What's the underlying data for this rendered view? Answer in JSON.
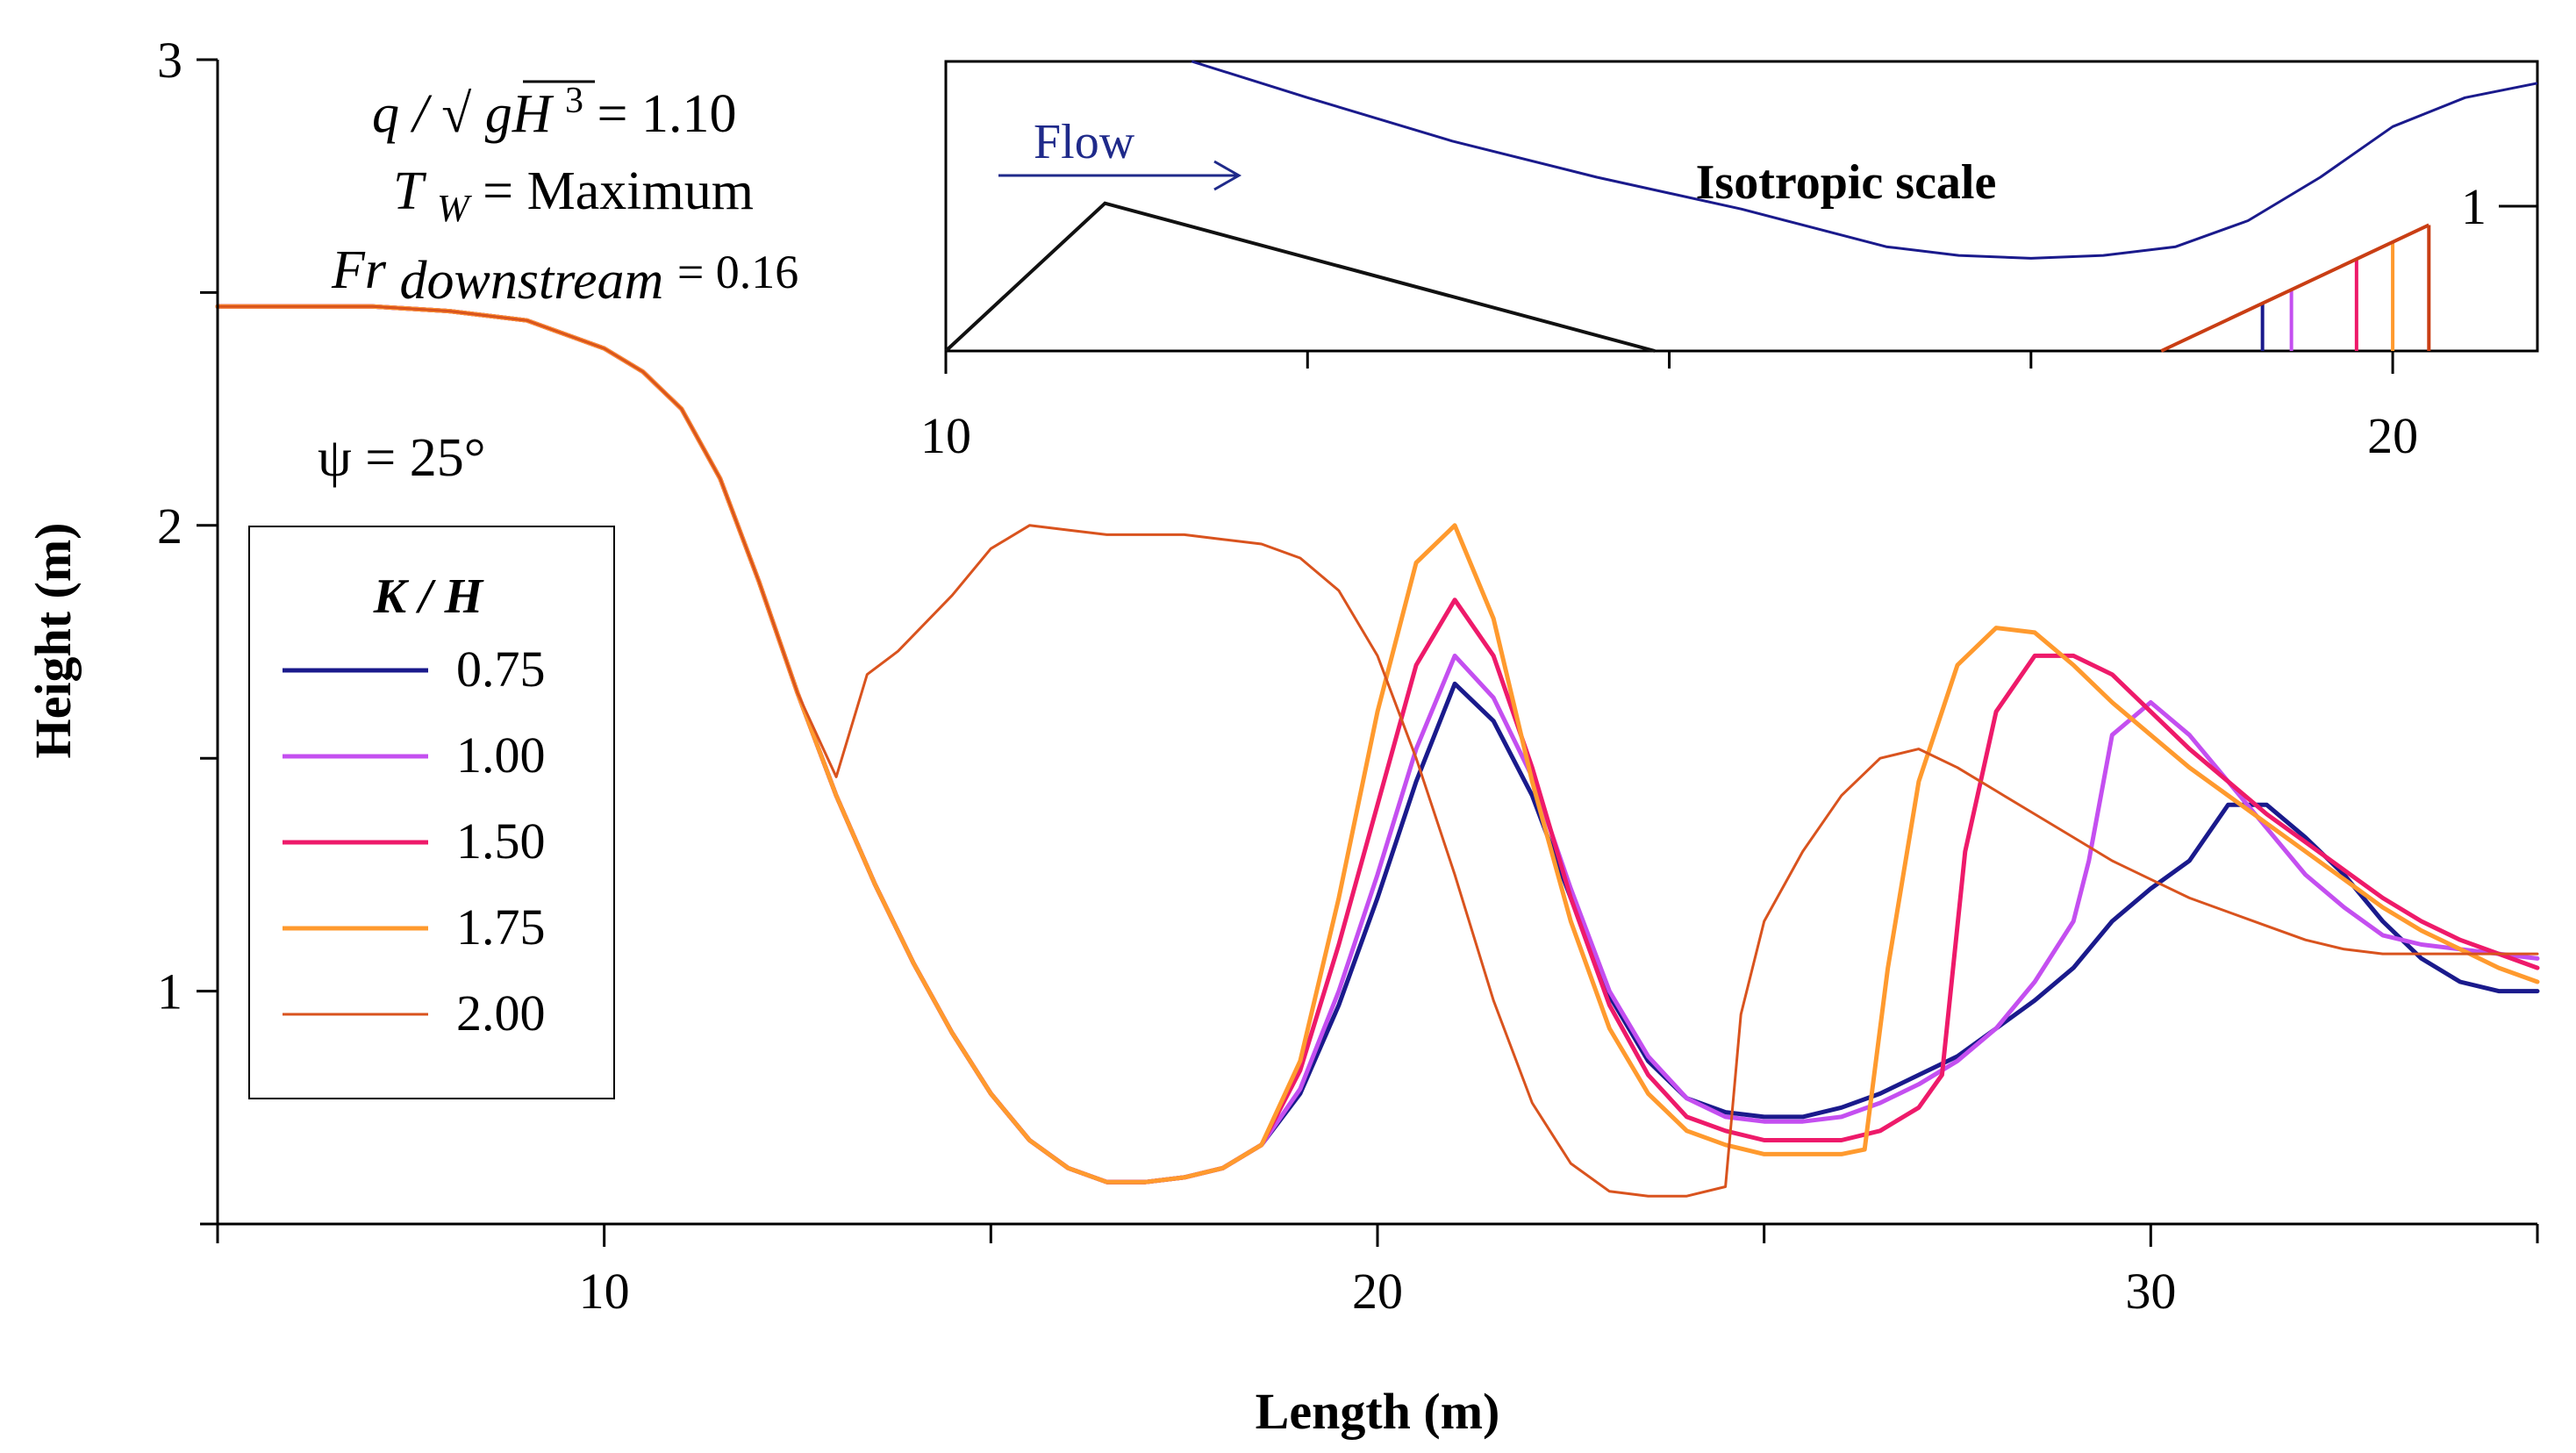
{
  "chart_data": {
    "type": "line",
    "title": "",
    "xlabel": "Length (m)",
    "ylabel": "Height (m)",
    "xlim": [
      5,
      35
    ],
    "ylim": [
      0.5,
      3
    ],
    "x_major_ticks": [
      10,
      20,
      30
    ],
    "x_minor_ticks": [
      5,
      15,
      25,
      35
    ],
    "y_major_ticks": [
      1,
      2,
      3
    ],
    "y_minor_ticks": [
      0.5,
      1.5,
      2.5
    ],
    "grid": false,
    "annotations": {
      "discharge": {
        "prefix": "q / ",
        "sqrt": "gH",
        "power": "3",
        "suffix": " = 1.10"
      },
      "tw": {
        "T": "T",
        "sub": "W",
        "rest": " = Maximum"
      },
      "fr": {
        "Fr": "Fr",
        "sub": "downstream",
        "rest": "= 0.16"
      },
      "psi": "ψ = 25°"
    },
    "legend": {
      "title": "K / H",
      "position": "left",
      "entries": [
        {
          "label": "0.75",
          "color": "#1a1a8c"
        },
        {
          "label": "1.00",
          "color": "#c44ff0"
        },
        {
          "label": "1.50",
          "color": "#ee1a6a"
        },
        {
          "label": "1.75",
          "color": "#ff9a2e"
        },
        {
          "label": "2.00",
          "color": "#d9531e"
        }
      ]
    },
    "series": [
      {
        "name": "0.75",
        "color": "#1a1a8c",
        "width": 5,
        "x": [
          5,
          7,
          8,
          9,
          10,
          10.5,
          11,
          11.5,
          12,
          12.5,
          13,
          13.5,
          14,
          14.5,
          15,
          15.5,
          16,
          16.5,
          17,
          17.5,
          18,
          18.5,
          19,
          19.5,
          20,
          20.5,
          21,
          21.5,
          22,
          22.5,
          23,
          23.5,
          24,
          24.5,
          25,
          25.5,
          26,
          26.5,
          27,
          27.5,
          28,
          28.5,
          29,
          29.5,
          30,
          30.5,
          31,
          31.5,
          32,
          32.5,
          33,
          33.5,
          34,
          34.5,
          35
        ],
        "y": [
          2.47,
          2.47,
          2.46,
          2.44,
          2.38,
          2.33,
          2.25,
          2.1,
          1.88,
          1.64,
          1.42,
          1.23,
          1.06,
          0.91,
          0.78,
          0.68,
          0.62,
          0.59,
          0.59,
          0.6,
          0.62,
          0.67,
          0.78,
          0.97,
          1.2,
          1.45,
          1.66,
          1.58,
          1.42,
          1.2,
          0.99,
          0.85,
          0.77,
          0.74,
          0.73,
          0.73,
          0.75,
          0.78,
          0.82,
          0.86,
          0.92,
          0.98,
          1.05,
          1.15,
          1.22,
          1.28,
          1.4,
          1.4,
          1.33,
          1.25,
          1.15,
          1.07,
          1.02,
          1.0,
          1.0
        ]
      },
      {
        "name": "1.00",
        "color": "#c44ff0",
        "width": 5,
        "x": [
          5,
          7,
          8,
          9,
          10,
          10.5,
          11,
          11.5,
          12,
          12.5,
          13,
          13.5,
          14,
          14.5,
          15,
          15.5,
          16,
          16.5,
          17,
          17.5,
          18,
          18.5,
          19,
          19.5,
          20,
          20.5,
          21,
          21.5,
          22,
          22.5,
          23,
          23.5,
          24,
          24.5,
          25,
          25.5,
          26,
          26.5,
          27,
          27.5,
          28,
          28.5,
          29,
          29.2,
          29.5,
          30,
          30.5,
          31,
          31.5,
          32,
          32.5,
          33,
          33.5,
          34,
          34.5,
          35
        ],
        "y": [
          2.47,
          2.47,
          2.46,
          2.44,
          2.38,
          2.33,
          2.25,
          2.1,
          1.88,
          1.64,
          1.42,
          1.23,
          1.06,
          0.91,
          0.78,
          0.68,
          0.62,
          0.59,
          0.59,
          0.6,
          0.62,
          0.67,
          0.79,
          1.0,
          1.25,
          1.52,
          1.72,
          1.63,
          1.46,
          1.22,
          1.0,
          0.86,
          0.77,
          0.73,
          0.72,
          0.72,
          0.73,
          0.76,
          0.8,
          0.85,
          0.92,
          1.02,
          1.15,
          1.28,
          1.55,
          1.62,
          1.55,
          1.45,
          1.35,
          1.25,
          1.18,
          1.12,
          1.1,
          1.09,
          1.08,
          1.07
        ]
      },
      {
        "name": "1.50",
        "color": "#ee1a6a",
        "width": 5,
        "x": [
          5,
          7,
          8,
          9,
          10,
          10.5,
          11,
          11.5,
          12,
          12.5,
          13,
          13.5,
          14,
          14.5,
          15,
          15.5,
          16,
          16.5,
          17,
          17.5,
          18,
          18.5,
          19,
          19.5,
          20,
          20.5,
          21,
          21.5,
          22,
          22.5,
          23,
          23.5,
          24,
          24.5,
          25,
          25.5,
          26,
          26.5,
          27,
          27.3,
          27.6,
          28,
          28.5,
          29,
          29.5,
          30,
          30.5,
          31,
          31.5,
          32,
          32.5,
          33,
          33.5,
          34,
          34.5,
          35
        ],
        "y": [
          2.47,
          2.47,
          2.46,
          2.44,
          2.38,
          2.33,
          2.25,
          2.1,
          1.88,
          1.64,
          1.42,
          1.23,
          1.06,
          0.91,
          0.78,
          0.68,
          0.62,
          0.59,
          0.59,
          0.6,
          0.62,
          0.67,
          0.83,
          1.1,
          1.4,
          1.7,
          1.84,
          1.72,
          1.48,
          1.2,
          0.97,
          0.82,
          0.73,
          0.7,
          0.68,
          0.68,
          0.68,
          0.7,
          0.75,
          0.82,
          1.3,
          1.6,
          1.72,
          1.72,
          1.68,
          1.6,
          1.52,
          1.45,
          1.38,
          1.32,
          1.26,
          1.2,
          1.15,
          1.11,
          1.08,
          1.05
        ]
      },
      {
        "name": "1.75",
        "color": "#ff9a2e",
        "width": 5,
        "x": [
          5,
          7,
          8,
          9,
          10,
          10.5,
          11,
          11.5,
          12,
          12.5,
          13,
          13.5,
          14,
          14.5,
          15,
          15.5,
          16,
          16.5,
          17,
          17.5,
          18,
          18.5,
          19,
          19.5,
          20,
          20.5,
          21,
          21.5,
          22,
          22.5,
          23,
          23.5,
          24,
          24.5,
          25,
          25.5,
          26,
          26.3,
          26.6,
          27,
          27.5,
          28,
          28.5,
          29,
          29.5,
          30,
          30.5,
          31,
          31.5,
          32,
          32.5,
          33,
          33.5,
          34,
          34.5,
          35
        ],
        "y": [
          2.47,
          2.47,
          2.46,
          2.44,
          2.38,
          2.33,
          2.25,
          2.1,
          1.88,
          1.64,
          1.42,
          1.23,
          1.06,
          0.91,
          0.78,
          0.68,
          0.62,
          0.59,
          0.59,
          0.6,
          0.62,
          0.67,
          0.85,
          1.2,
          1.6,
          1.92,
          2.0,
          1.8,
          1.45,
          1.15,
          0.92,
          0.78,
          0.7,
          0.67,
          0.65,
          0.65,
          0.65,
          0.66,
          1.05,
          1.45,
          1.7,
          1.78,
          1.77,
          1.7,
          1.62,
          1.55,
          1.48,
          1.42,
          1.36,
          1.3,
          1.24,
          1.18,
          1.13,
          1.09,
          1.05,
          1.02
        ]
      },
      {
        "name": "2.00",
        "color": "#d9531e",
        "width": 3,
        "x": [
          5,
          7,
          8,
          9,
          10,
          10.5,
          11,
          11.5,
          12,
          12.5,
          13,
          13.4,
          13.8,
          14.5,
          15,
          15.5,
          16,
          16.5,
          17,
          17.5,
          18,
          18.5,
          19,
          19.5,
          20,
          20.5,
          21,
          21.5,
          22,
          22.5,
          23,
          23.5,
          24,
          24.5,
          24.7,
          25,
          25.5,
          26,
          26.5,
          27,
          27.5,
          28,
          28.5,
          29,
          29.5,
          30,
          30.5,
          31,
          31.5,
          32,
          32.5,
          33,
          33.5,
          34,
          34.5,
          35
        ],
        "y": [
          2.47,
          2.47,
          2.46,
          2.44,
          2.38,
          2.33,
          2.25,
          2.1,
          1.88,
          1.64,
          1.46,
          1.68,
          1.73,
          1.85,
          1.95,
          2.0,
          1.99,
          1.98,
          1.98,
          1.98,
          1.97,
          1.96,
          1.93,
          1.86,
          1.72,
          1.5,
          1.25,
          0.98,
          0.76,
          0.63,
          0.57,
          0.56,
          0.56,
          0.58,
          0.95,
          1.15,
          1.3,
          1.42,
          1.5,
          1.52,
          1.48,
          1.43,
          1.38,
          1.33,
          1.28,
          1.24,
          1.2,
          1.17,
          1.14,
          1.11,
          1.09,
          1.08,
          1.08,
          1.08,
          1.08,
          1.08
        ]
      }
    ],
    "inset": {
      "title": "Isotropic scale",
      "flow_label": "Flow",
      "xlim": [
        10,
        21
      ],
      "ylim": [
        0,
        2
      ],
      "x_major_ticks": [
        10,
        20
      ],
      "x_minor_ticks": [
        12.5,
        15,
        17.5
      ],
      "y_tick_label": "1",
      "y_tick_value": 1,
      "water_surface": {
        "color": "#1a1a8c",
        "x": [
          11.7,
          12.5,
          13.5,
          14.5,
          15.5,
          16.5,
          17,
          17.5,
          18,
          18.5,
          19,
          19.5,
          20,
          20.5,
          21
        ],
        "y": [
          2.0,
          1.75,
          1.45,
          1.2,
          0.98,
          0.72,
          0.66,
          0.64,
          0.66,
          0.72,
          0.9,
          1.2,
          1.55,
          1.75,
          1.85
        ]
      },
      "bed": {
        "color": "#111111",
        "x": [
          10,
          11.1,
          14.9
        ],
        "y": [
          0,
          1.02,
          0
        ]
      },
      "ramp": {
        "color": "#c93e14",
        "x": [
          18.4,
          20.25
        ],
        "y": [
          0,
          0.87
        ]
      },
      "ramp_lines": [
        {
          "x": 19.1,
          "color": "#1a1a8c"
        },
        {
          "x": 19.3,
          "color": "#c44ff0"
        },
        {
          "x": 19.75,
          "color": "#ee1a6a"
        },
        {
          "x": 20.0,
          "color": "#ff9a2e"
        },
        {
          "x": 20.25,
          "color": "#c93e14"
        }
      ]
    }
  }
}
